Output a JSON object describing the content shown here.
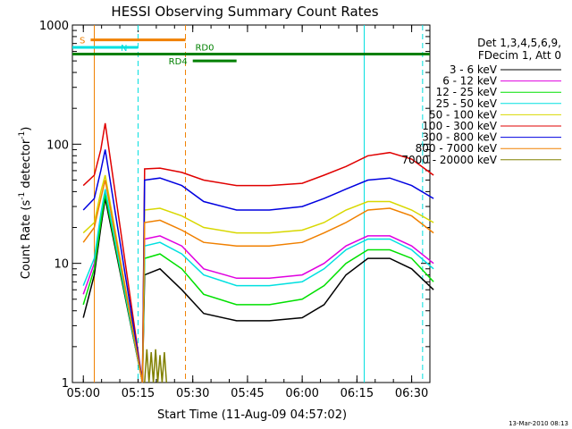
{
  "chart_data": {
    "type": "line",
    "title": "HESSI Observing Summary Count Rates",
    "xlabel": "Start Time (11-Aug-09 04:57:02)",
    "ylabel_main": "Count Rate (s",
    "ylabel_sup1": "-1",
    "ylabel_mid": " detector",
    "ylabel_sup2": "-1",
    "ylabel_end": ")",
    "y_scale": "log",
    "ylim": [
      1,
      1000
    ],
    "xlim": [
      "04:57:02",
      "06:35:00"
    ],
    "x_ticks": [
      "05:00",
      "05:15",
      "05:30",
      "05:45",
      "06:00",
      "06:15",
      "06:30"
    ],
    "y_ticks": [
      {
        "value": 1,
        "label": "1"
      },
      {
        "value": 10,
        "label": "10"
      },
      {
        "value": 100,
        "label": "100"
      },
      {
        "value": 1000,
        "label": "1000"
      }
    ],
    "legend_header": [
      "Det 1,3,4,5,6,9,",
      "FDecim 1, Att 0"
    ],
    "legend_position": "right",
    "series": [
      {
        "name": "3 - 6 keV",
        "color": "#000000",
        "points": [
          [
            5.0,
            3.5
          ],
          [
            5.05,
            8
          ],
          [
            5.08,
            20
          ],
          [
            5.1,
            35
          ],
          [
            5.27,
            0
          ],
          [
            5.28,
            8
          ],
          [
            5.35,
            9
          ],
          [
            5.45,
            6
          ],
          [
            5.55,
            3.8
          ],
          [
            5.7,
            3.3
          ],
          [
            5.85,
            3.3
          ],
          [
            6.0,
            3.5
          ],
          [
            6.1,
            4.5
          ],
          [
            6.2,
            8
          ],
          [
            6.3,
            11
          ],
          [
            6.4,
            11
          ],
          [
            6.5,
            9
          ],
          [
            6.6,
            6
          ]
        ]
      },
      {
        "name": "6 - 12 keV",
        "color": "#e000e0",
        "points": [
          [
            5.0,
            5.5
          ],
          [
            5.05,
            10
          ],
          [
            5.08,
            25
          ],
          [
            5.1,
            40
          ],
          [
            5.27,
            0
          ],
          [
            5.28,
            16
          ],
          [
            5.35,
            17
          ],
          [
            5.45,
            14
          ],
          [
            5.55,
            9
          ],
          [
            5.7,
            7.5
          ],
          [
            5.85,
            7.5
          ],
          [
            6.0,
            8
          ],
          [
            6.1,
            10
          ],
          [
            6.2,
            14
          ],
          [
            6.3,
            17
          ],
          [
            6.4,
            17
          ],
          [
            6.5,
            14
          ],
          [
            6.6,
            10
          ]
        ]
      },
      {
        "name": "12 - 25 keV",
        "color": "#00e000",
        "points": [
          [
            5.0,
            4.5
          ],
          [
            5.05,
            9
          ],
          [
            5.08,
            22
          ],
          [
            5.1,
            38
          ],
          [
            5.27,
            0
          ],
          [
            5.28,
            11
          ],
          [
            5.35,
            12
          ],
          [
            5.45,
            9
          ],
          [
            5.55,
            5.5
          ],
          [
            5.7,
            4.5
          ],
          [
            5.85,
            4.5
          ],
          [
            6.0,
            5
          ],
          [
            6.1,
            6.5
          ],
          [
            6.2,
            10
          ],
          [
            6.3,
            13
          ],
          [
            6.4,
            13
          ],
          [
            6.5,
            11
          ],
          [
            6.6,
            7
          ]
        ]
      },
      {
        "name": "25 - 50 keV",
        "color": "#00e0e0",
        "points": [
          [
            5.0,
            6.5
          ],
          [
            5.05,
            11
          ],
          [
            5.08,
            26
          ],
          [
            5.1,
            42
          ],
          [
            5.27,
            0
          ],
          [
            5.28,
            14
          ],
          [
            5.35,
            15
          ],
          [
            5.45,
            12
          ],
          [
            5.55,
            8
          ],
          [
            5.7,
            6.5
          ],
          [
            5.85,
            6.5
          ],
          [
            6.0,
            7
          ],
          [
            6.1,
            9
          ],
          [
            6.2,
            13
          ],
          [
            6.3,
            16
          ],
          [
            6.4,
            16
          ],
          [
            6.5,
            13
          ],
          [
            6.6,
            9
          ]
        ]
      },
      {
        "name": "50 - 100 keV",
        "color": "#d8d800",
        "points": [
          [
            5.0,
            18
          ],
          [
            5.05,
            22
          ],
          [
            5.08,
            40
          ],
          [
            5.1,
            55
          ],
          [
            5.27,
            0
          ],
          [
            5.28,
            28
          ],
          [
            5.35,
            29
          ],
          [
            5.45,
            25
          ],
          [
            5.55,
            20
          ],
          [
            5.7,
            18
          ],
          [
            5.85,
            18
          ],
          [
            6.0,
            19
          ],
          [
            6.1,
            22
          ],
          [
            6.2,
            28
          ],
          [
            6.3,
            33
          ],
          [
            6.4,
            33
          ],
          [
            6.5,
            28
          ],
          [
            6.6,
            22
          ]
        ]
      },
      {
        "name": "100 - 300 keV",
        "color": "#e00000",
        "points": [
          [
            5.0,
            45
          ],
          [
            5.05,
            55
          ],
          [
            5.08,
            90
          ],
          [
            5.1,
            150
          ],
          [
            5.27,
            0
          ],
          [
            5.28,
            62
          ],
          [
            5.35,
            63
          ],
          [
            5.45,
            58
          ],
          [
            5.55,
            50
          ],
          [
            5.7,
            45
          ],
          [
            5.85,
            45
          ],
          [
            6.0,
            47
          ],
          [
            6.1,
            55
          ],
          [
            6.2,
            65
          ],
          [
            6.3,
            80
          ],
          [
            6.4,
            85
          ],
          [
            6.5,
            75
          ],
          [
            6.6,
            55
          ]
        ]
      },
      {
        "name": "300 - 800 keV",
        "color": "#0000e0",
        "points": [
          [
            5.0,
            28
          ],
          [
            5.05,
            35
          ],
          [
            5.08,
            60
          ],
          [
            5.1,
            90
          ],
          [
            5.27,
            0
          ],
          [
            5.28,
            50
          ],
          [
            5.35,
            52
          ],
          [
            5.45,
            45
          ],
          [
            5.55,
            33
          ],
          [
            5.7,
            28
          ],
          [
            5.85,
            28
          ],
          [
            6.0,
            30
          ],
          [
            6.1,
            35
          ],
          [
            6.2,
            42
          ],
          [
            6.3,
            50
          ],
          [
            6.4,
            52
          ],
          [
            6.5,
            45
          ],
          [
            6.6,
            35
          ]
        ]
      },
      {
        "name": "800 - 7000 keV",
        "color": "#f08000",
        "points": [
          [
            5.0,
            15
          ],
          [
            5.05,
            20
          ],
          [
            5.08,
            35
          ],
          [
            5.1,
            50
          ],
          [
            5.27,
            0
          ],
          [
            5.28,
            22
          ],
          [
            5.35,
            23
          ],
          [
            5.45,
            19
          ],
          [
            5.55,
            15
          ],
          [
            5.7,
            14
          ],
          [
            5.85,
            14
          ],
          [
            6.0,
            15
          ],
          [
            6.1,
            18
          ],
          [
            6.2,
            22
          ],
          [
            6.3,
            28
          ],
          [
            6.4,
            29
          ],
          [
            6.5,
            25
          ],
          [
            6.6,
            18
          ]
        ]
      },
      {
        "name": "7000 - 20000 keV",
        "color": "#808000",
        "points": [
          [
            5.28,
            1
          ],
          [
            5.29,
            1.9
          ],
          [
            5.3,
            1
          ],
          [
            5.31,
            1.8
          ],
          [
            5.32,
            1
          ],
          [
            5.33,
            1.9
          ],
          [
            5.34,
            1
          ],
          [
            5.35,
            1.7
          ],
          [
            5.36,
            1
          ],
          [
            5.37,
            1.8
          ],
          [
            5.38,
            1
          ]
        ]
      }
    ],
    "flags": [
      {
        "label": "S",
        "color": "#f08000",
        "y_value": 750,
        "start": "05:02",
        "end": "05:28",
        "label_side": "left"
      },
      {
        "label": "N",
        "color": "#00e0e0",
        "y_value": 650,
        "start": "04:57",
        "end": "05:15",
        "label_side": "end"
      },
      {
        "label": "RD4",
        "color": "#008000",
        "y_value": 500,
        "start": "05:30",
        "end": "05:42",
        "label_side": "left"
      },
      {
        "label": "RD0",
        "color": "#008000",
        "y_value": 570,
        "start": "04:57",
        "end": "06:35",
        "label_side": "mid"
      }
    ],
    "vertical_markers": [
      {
        "time": "05:03",
        "color": "#f08000",
        "style": "solid"
      },
      {
        "time": "05:15",
        "color": "#00e0e0",
        "style": "dashed"
      },
      {
        "time": "05:28",
        "color": "#f08000",
        "style": "dashed"
      },
      {
        "time": "06:17",
        "color": "#00e0e0",
        "style": "solid"
      },
      {
        "time": "06:33",
        "color": "#00e0e0",
        "style": "dashed"
      }
    ]
  },
  "footer_timestamp": "13-Mar-2010 08:13"
}
